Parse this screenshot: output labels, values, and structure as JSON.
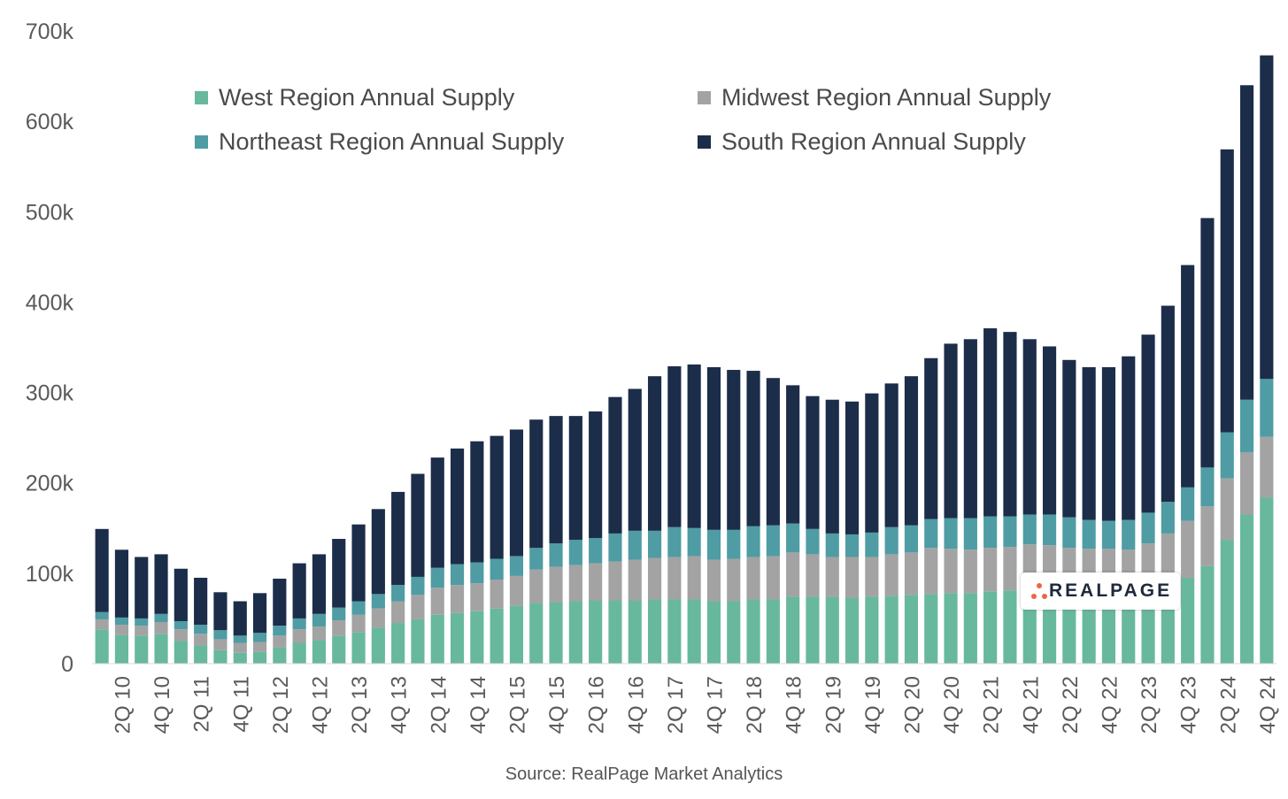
{
  "chart_data": {
    "type": "bar",
    "stacked": true,
    "source": "Source: RealPage Market Analytics",
    "ylim": [
      0,
      700000
    ],
    "yticks": [
      "0",
      "100k",
      "200k",
      "300k",
      "400k",
      "500k",
      "600k",
      "700k"
    ],
    "categories": [
      "1Q 10",
      "2Q 10",
      "3Q 10",
      "4Q 10",
      "1Q 11",
      "2Q 11",
      "3Q 11",
      "4Q 11",
      "1Q 12",
      "2Q 12",
      "3Q 12",
      "4Q 12",
      "1Q 13",
      "2Q 13",
      "3Q 13",
      "4Q 13",
      "1Q 14",
      "2Q 14",
      "3Q 14",
      "4Q 14",
      "1Q 15",
      "2Q 15",
      "3Q 15",
      "4Q 15",
      "1Q 16",
      "2Q 16",
      "3Q 16",
      "4Q 16",
      "1Q 17",
      "2Q 17",
      "3Q 17",
      "4Q 17",
      "1Q 18",
      "2Q 18",
      "3Q 18",
      "4Q 18",
      "1Q 19",
      "2Q 19",
      "3Q 19",
      "4Q 19",
      "1Q 20",
      "2Q 20",
      "3Q 20",
      "4Q 20",
      "1Q 21",
      "2Q 21",
      "3Q 21",
      "4Q 21",
      "1Q 22",
      "2Q 22",
      "3Q 22",
      "4Q 22",
      "1Q 23",
      "2Q 23",
      "3Q 23",
      "4Q 23",
      "1Q 24",
      "2Q 24",
      "3Q 24",
      "4Q 24"
    ],
    "labeled_ticks": [
      "2Q 10",
      "4Q 10",
      "2Q 11",
      "4Q 11",
      "2Q 12",
      "4Q 12",
      "2Q 13",
      "4Q 13",
      "2Q 14",
      "4Q 14",
      "2Q 15",
      "4Q 15",
      "2Q 16",
      "4Q 16",
      "2Q 17",
      "4Q 17",
      "2Q 18",
      "4Q 18",
      "2Q 19",
      "4Q 19",
      "2Q 20",
      "4Q 20",
      "2Q 21",
      "4Q 21",
      "2Q 22",
      "4Q 22",
      "2Q 23",
      "4Q 23",
      "2Q 24",
      "4Q 24"
    ],
    "series": [
      {
        "name": "West Region Annual Supply",
        "color": "#68b89e",
        "values": [
          38000,
          32000,
          31000,
          33000,
          25000,
          20000,
          15000,
          12000,
          13000,
          18000,
          23000,
          26000,
          31000,
          35000,
          40000,
          45000,
          49000,
          54000,
          56000,
          58000,
          61000,
          64000,
          67000,
          68000,
          69000,
          70000,
          70000,
          70000,
          71000,
          71000,
          71000,
          69000,
          69000,
          71000,
          71000,
          74000,
          74000,
          74000,
          73000,
          74000,
          75000,
          76000,
          77000,
          78000,
          78000,
          80000,
          81000,
          76000,
          70000,
          64000,
          62000,
          62000,
          63000,
          66000,
          80000,
          95000,
          108000,
          137000,
          165000,
          184000
        ]
      },
      {
        "name": "Midwest Region Annual Supply",
        "color": "#a3a3a3",
        "values": [
          11000,
          11000,
          11000,
          13000,
          13000,
          13000,
          12000,
          11000,
          11000,
          13000,
          15000,
          15000,
          17000,
          19000,
          21000,
          24000,
          27000,
          30000,
          31000,
          31000,
          32000,
          33000,
          37000,
          39000,
          40000,
          41000,
          43000,
          45000,
          46000,
          47000,
          48000,
          46000,
          47000,
          47000,
          48000,
          49000,
          47000,
          44000,
          45000,
          44000,
          46000,
          47000,
          51000,
          49000,
          48000,
          48000,
          48000,
          56000,
          61000,
          64000,
          65000,
          65000,
          63000,
          67000,
          64000,
          63000,
          66000,
          68000,
          69000,
          67000
        ]
      },
      {
        "name": "Northeast Region Annual Supply",
        "color": "#4f9ca4",
        "values": [
          8000,
          8000,
          8000,
          9000,
          9000,
          10000,
          10000,
          8000,
          10000,
          11000,
          12000,
          14000,
          14000,
          15000,
          16000,
          18000,
          20000,
          22000,
          23000,
          23000,
          23000,
          22000,
          24000,
          26000,
          28000,
          28000,
          31000,
          32000,
          30000,
          33000,
          31000,
          33000,
          32000,
          34000,
          34000,
          32000,
          28000,
          26000,
          25000,
          27000,
          30000,
          30000,
          32000,
          34000,
          35000,
          35000,
          34000,
          33000,
          34000,
          34000,
          32000,
          31000,
          33000,
          34000,
          35000,
          37000,
          43000,
          51000,
          58000,
          64000
        ]
      },
      {
        "name": "South Region Annual Supply",
        "color": "#1c2d4a",
        "values": [
          92000,
          75000,
          68000,
          66000,
          58000,
          52000,
          42000,
          38000,
          44000,
          52000,
          61000,
          66000,
          76000,
          85000,
          94000,
          103000,
          114000,
          122000,
          128000,
          134000,
          136000,
          140000,
          142000,
          141000,
          137000,
          140000,
          151000,
          157000,
          171000,
          178000,
          181000,
          180000,
          177000,
          172000,
          163000,
          153000,
          147000,
          148000,
          147000,
          154000,
          159000,
          165000,
          178000,
          193000,
          198000,
          208000,
          204000,
          194000,
          186000,
          174000,
          169000,
          170000,
          181000,
          197000,
          217000,
          246000,
          276000,
          313000,
          348000,
          358000
        ]
      }
    ]
  }
}
